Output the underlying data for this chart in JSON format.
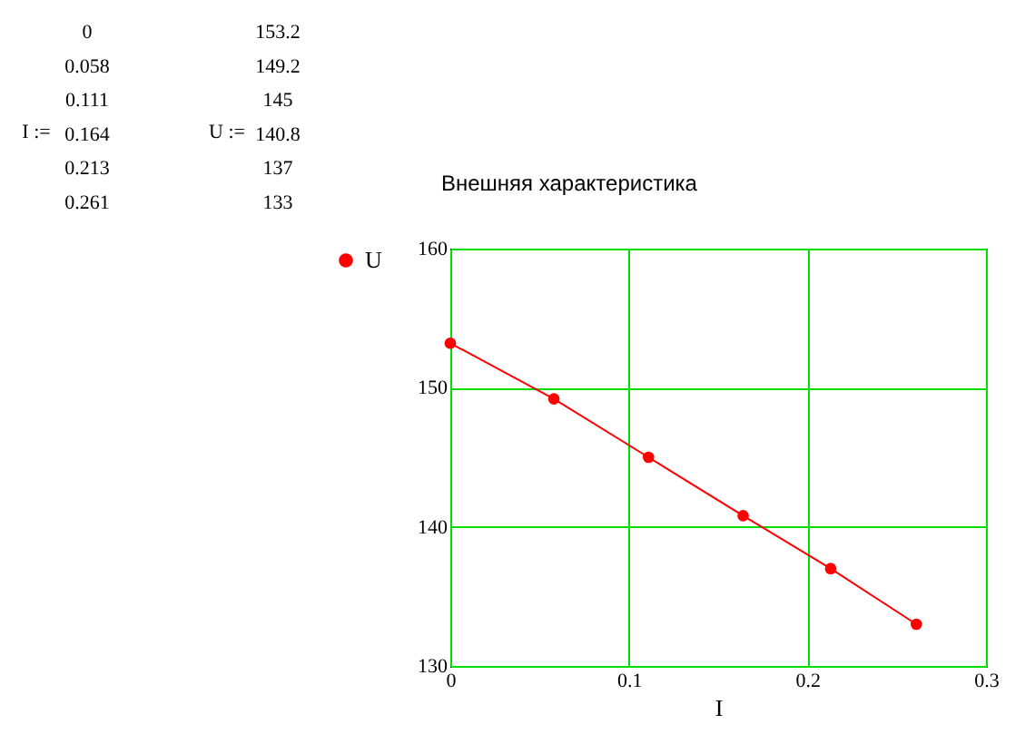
{
  "chart_data": {
    "type": "line",
    "title": "Внешняя характеристика",
    "xlabel": "I",
    "x": [
      0,
      0.058,
      0.111,
      0.164,
      0.213,
      0.261
    ],
    "series": [
      {
        "name": "U",
        "color": "#ff0000",
        "values": [
          153.2,
          149.2,
          145,
          140.8,
          137,
          133
        ]
      }
    ],
    "xlim": [
      0,
      0.3
    ],
    "xticks": [
      0,
      0.1,
      0.2,
      0.3
    ],
    "ylim": [
      130,
      160
    ],
    "yticks": [
      130,
      140,
      150,
      160
    ],
    "grid": true,
    "legend": "left",
    "marker": "circle",
    "line_style": "solid",
    "annotations": [
      "I :=",
      "0",
      "0.058",
      "0.111",
      "0.164",
      "0.213",
      "0.261",
      "U :=",
      "153.2",
      "149.2",
      "145",
      "140.8",
      "137",
      "133"
    ]
  }
}
